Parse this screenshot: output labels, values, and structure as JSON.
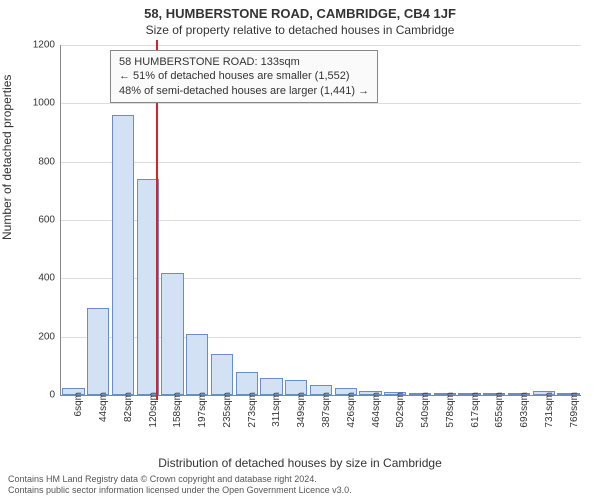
{
  "title": "58, HUMBERSTONE ROAD, CAMBRIDGE, CB4 1JF",
  "subtitle": "Size of property relative to detached houses in Cambridge",
  "info_box": {
    "line1": "58 HUMBERSTONE ROAD: 133sqm",
    "line2": "← 51% of detached houses are smaller (1,552)",
    "line3": "48% of semi-detached houses are larger (1,441) →"
  },
  "ylabel": "Number of detached properties",
  "xlabel": "Distribution of detached houses by size in Cambridge",
  "footer": {
    "line1": "Contains HM Land Registry data © Crown copyright and database right 2024.",
    "line2": "Contains public sector information licensed under the Open Government Licence v3.0."
  },
  "chart": {
    "type": "histogram",
    "ylim": [
      0,
      1200
    ],
    "ytick_step": 200,
    "yticks": [
      0,
      200,
      400,
      600,
      800,
      1000,
      1200
    ],
    "marker_x": 133,
    "marker_color": "#d22",
    "bar_fill": "#d3e1f5",
    "bar_stroke": "#6a8cc7",
    "grid_color": "#ddd",
    "axis_color": "#888",
    "background_color": "#ffffff",
    "categories": [
      "6sqm",
      "44sqm",
      "82sqm",
      "120sqm",
      "158sqm",
      "197sqm",
      "235sqm",
      "273sqm",
      "311sqm",
      "349sqm",
      "387sqm",
      "426sqm",
      "464sqm",
      "502sqm",
      "540sqm",
      "578sqm",
      "617sqm",
      "655sqm",
      "693sqm",
      "731sqm",
      "769sqm"
    ],
    "values": [
      25,
      300,
      960,
      740,
      420,
      210,
      140,
      80,
      60,
      50,
      35,
      25,
      15,
      12,
      8,
      6,
      5,
      4,
      3,
      15,
      2
    ]
  }
}
